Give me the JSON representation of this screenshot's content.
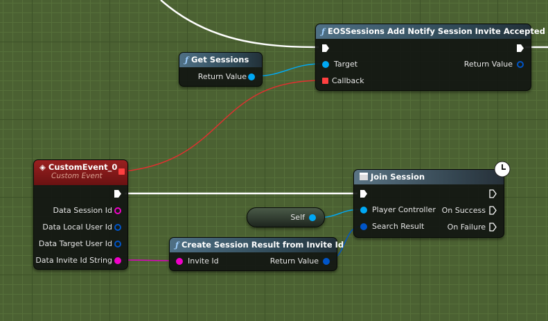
{
  "colors": {
    "exec": "#ffffff",
    "object": "#00a8f4",
    "struct": "#0055c8",
    "string": "#f000c8",
    "delegate": "#ff3838",
    "background": "#4b6132"
  },
  "nodes": {
    "get_sessions": {
      "title": "Get Sessions",
      "icon": "function-icon",
      "pins": {
        "return_value": "Return Value"
      }
    },
    "add_notify": {
      "title": "EOSSessions Add Notify Session Invite Accepted",
      "icon": "function-icon",
      "pins": {
        "target": "Target",
        "callback": "Callback",
        "return_value": "Return Value"
      }
    },
    "custom_event": {
      "title": "CustomEvent_0",
      "subtitle": "Custom Event",
      "icon": "event-icon",
      "pins": [
        "Data Session Id",
        "Data Local User Id",
        "Data Target User Id",
        "Data Invite Id String"
      ]
    },
    "join_session": {
      "title": "Join Session",
      "icon": "latent-node-icon",
      "badge": "clock-icon",
      "pins": {
        "player_controller": "Player Controller",
        "search_result": "Search Result",
        "on_success": "On Success",
        "on_failure": "On Failure"
      }
    },
    "self": {
      "label": "Self"
    },
    "create_result": {
      "title": "Create Session Result from Invite Id",
      "icon": "function-icon",
      "pins": {
        "invite_id": "Invite Id",
        "return_value": "Return Value"
      }
    }
  }
}
